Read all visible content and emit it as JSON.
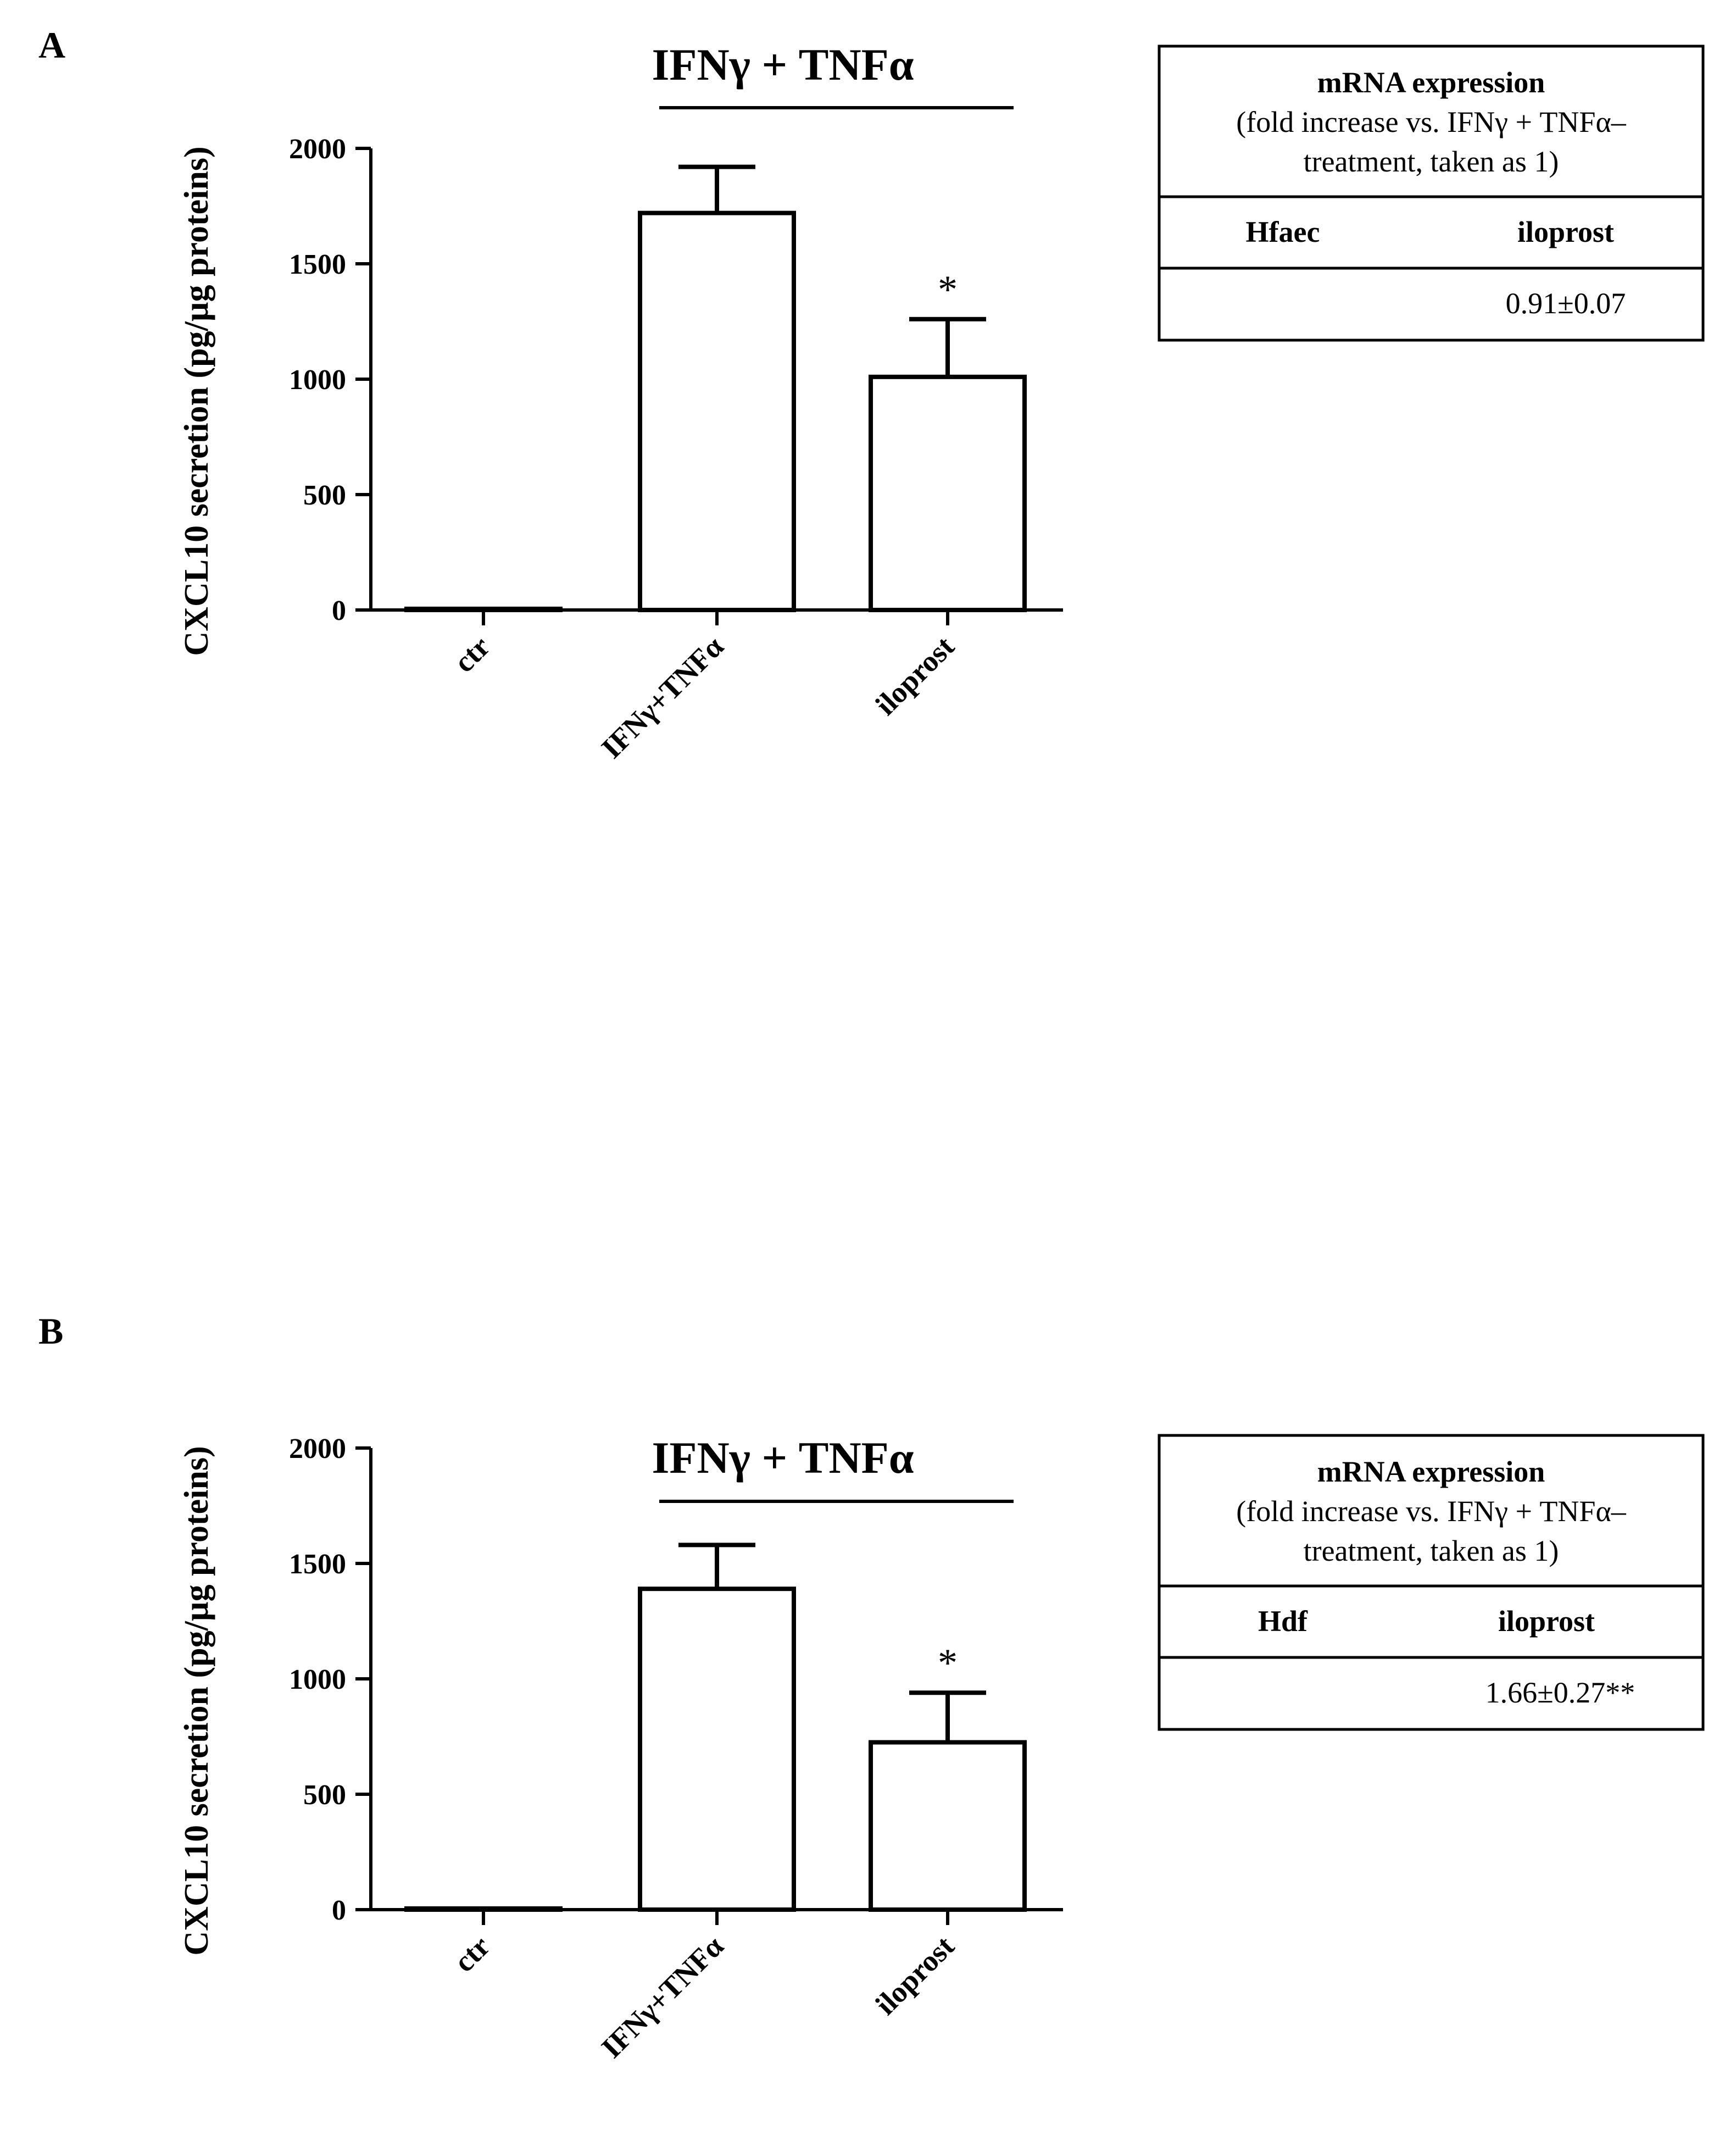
{
  "panels": [
    {
      "label": "A",
      "treatment_label": "IFNγ + TNFα",
      "significance": "*",
      "table": {
        "header_line1": "mRNA expression",
        "header_line2": "(fold increase vs. IFNγ + TNFα–",
        "header_line3": "treatment, taken as 1)",
        "col1": "Hfaec",
        "col2": "iloprost",
        "value": "0.91±0.07"
      }
    },
    {
      "label": "B",
      "treatment_label": "IFNγ + TNFα",
      "significance": "*",
      "table": {
        "header_line1": "mRNA expression",
        "header_line2": "(fold increase vs. IFNγ + TNFα–",
        "header_line3": "treatment, taken as 1)",
        "col1": "Hdf",
        "col2": "iloprost",
        "value": "1.66±0.27**"
      }
    }
  ],
  "chart_data": [
    {
      "type": "bar",
      "title": "",
      "xlabel": "",
      "ylabel": "CXCL10 secretion (pg/µg proteins)",
      "categories": [
        "ctr",
        "IFNγ+TNFα",
        "iloprost"
      ],
      "values": [
        5,
        1720,
        1010
      ],
      "errors": [
        0,
        200,
        250
      ],
      "ylim": [
        0,
        2000
      ],
      "yticks": [
        0,
        500,
        1000,
        1500,
        2000
      ],
      "yticklabels": [
        "0",
        "500",
        "1000",
        "1500",
        "2000"
      ],
      "annotations": [
        {
          "category": "iloprost",
          "text": "*"
        }
      ]
    },
    {
      "type": "bar",
      "title": "",
      "xlabel": "",
      "ylabel": "CXCL10 secretion (pg/µg proteins)",
      "categories": [
        "ctr",
        "IFNγ+TNFα",
        "iloprost"
      ],
      "values": [
        5,
        1390,
        725
      ],
      "errors": [
        0,
        190,
        215
      ],
      "ylim": [
        0,
        2000
      ],
      "yticks": [
        0,
        500,
        1000,
        1500,
        2000
      ],
      "yticklabels": [
        "0",
        "500",
        "1000",
        "1500",
        "2000"
      ],
      "annotations": [
        {
          "category": "iloprost",
          "text": "*"
        }
      ]
    }
  ]
}
